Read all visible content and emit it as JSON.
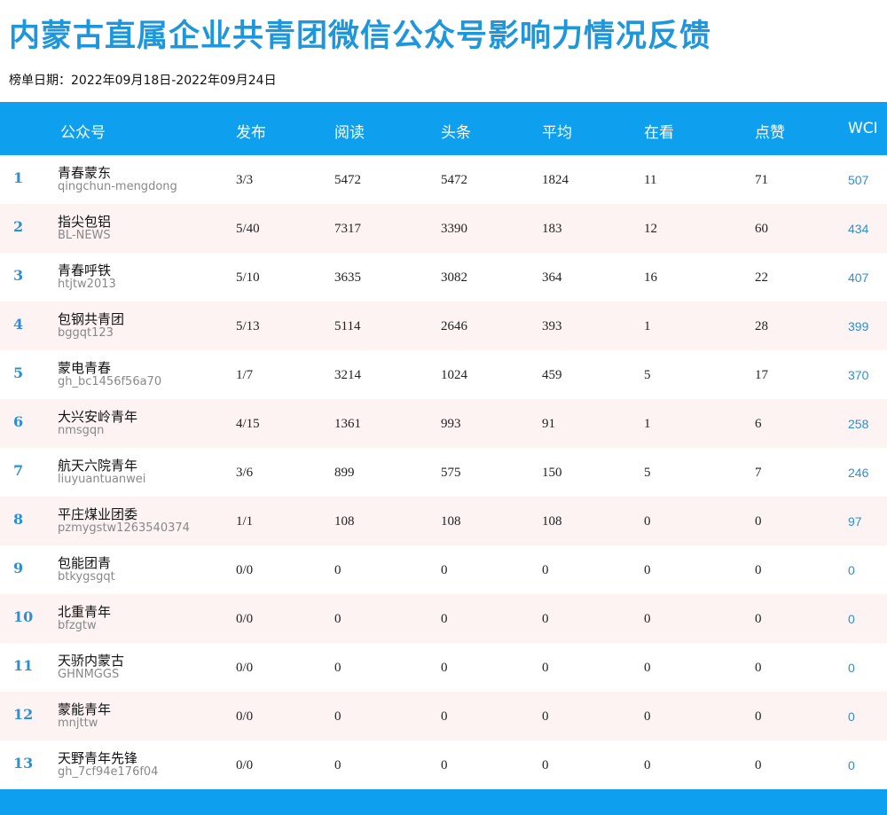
{
  "title": "内蒙古直属企业共青团微信公众号影响力情况反馈",
  "date_range": "榜单日期：2022年09月18日-2022年09月24日",
  "headers": {
    "account": "公众号",
    "posts": "发布",
    "reads": "阅读",
    "headline": "头条",
    "average": "平均",
    "watching": "在看",
    "likes": "点赞",
    "wci": "WCI"
  },
  "rows": [
    {
      "rank": "1",
      "name": "青春蒙东",
      "id": "qingchun-mengdong",
      "posts": "3/3",
      "reads": "5472",
      "headline": "5472",
      "average": "1824",
      "watching": "11",
      "likes": "71",
      "wci": "507"
    },
    {
      "rank": "2",
      "name": "指尖包铝",
      "id": "BL-NEWS",
      "posts": "5/40",
      "reads": "7317",
      "headline": "3390",
      "average": "183",
      "watching": "12",
      "likes": "60",
      "wci": "434"
    },
    {
      "rank": "3",
      "name": "青春呼铁",
      "id": "htjtw2013",
      "posts": "5/10",
      "reads": "3635",
      "headline": "3082",
      "average": "364",
      "watching": "16",
      "likes": "22",
      "wci": "407"
    },
    {
      "rank": "4",
      "name": "包钢共青团",
      "id": "bggqt123",
      "posts": "5/13",
      "reads": "5114",
      "headline": "2646",
      "average": "393",
      "watching": "1",
      "likes": "28",
      "wci": "399"
    },
    {
      "rank": "5",
      "name": "蒙电青春",
      "id": "gh_bc1456f56a70",
      "posts": "1/7",
      "reads": "3214",
      "headline": "1024",
      "average": "459",
      "watching": "5",
      "likes": "17",
      "wci": "370"
    },
    {
      "rank": "6",
      "name": "大兴安岭青年",
      "id": "nmsgqn",
      "posts": "4/15",
      "reads": "1361",
      "headline": "993",
      "average": "91",
      "watching": "1",
      "likes": "6",
      "wci": "258"
    },
    {
      "rank": "7",
      "name": "航天六院青年",
      "id": "liuyuantuanwei",
      "posts": "3/6",
      "reads": "899",
      "headline": "575",
      "average": "150",
      "watching": "5",
      "likes": "7",
      "wci": "246"
    },
    {
      "rank": "8",
      "name": "平庄煤业团委",
      "id": "pzmygstw1263540374",
      "posts": "1/1",
      "reads": "108",
      "headline": "108",
      "average": "108",
      "watching": "0",
      "likes": "0",
      "wci": "97"
    },
    {
      "rank": "9",
      "name": "包能团青",
      "id": "btkygsgqt",
      "posts": "0/0",
      "reads": "0",
      "headline": "0",
      "average": "0",
      "watching": "0",
      "likes": "0",
      "wci": "0"
    },
    {
      "rank": "10",
      "name": "北重青年",
      "id": "bfzgtw",
      "posts": "0/0",
      "reads": "0",
      "headline": "0",
      "average": "0",
      "watching": "0",
      "likes": "0",
      "wci": "0"
    },
    {
      "rank": "11",
      "name": "天骄内蒙古",
      "id": "GHNMGGS",
      "posts": "0/0",
      "reads": "0",
      "headline": "0",
      "average": "0",
      "watching": "0",
      "likes": "0",
      "wci": "0"
    },
    {
      "rank": "12",
      "name": "蒙能青年",
      "id": "mnjttw",
      "posts": "0/0",
      "reads": "0",
      "headline": "0",
      "average": "0",
      "watching": "0",
      "likes": "0",
      "wci": "0"
    },
    {
      "rank": "13",
      "name": "天野青年先锋",
      "id": "gh_7cf94e176f04",
      "posts": "0/0",
      "reads": "0",
      "headline": "0",
      "average": "0",
      "watching": "0",
      "likes": "0",
      "wci": "0"
    }
  ]
}
